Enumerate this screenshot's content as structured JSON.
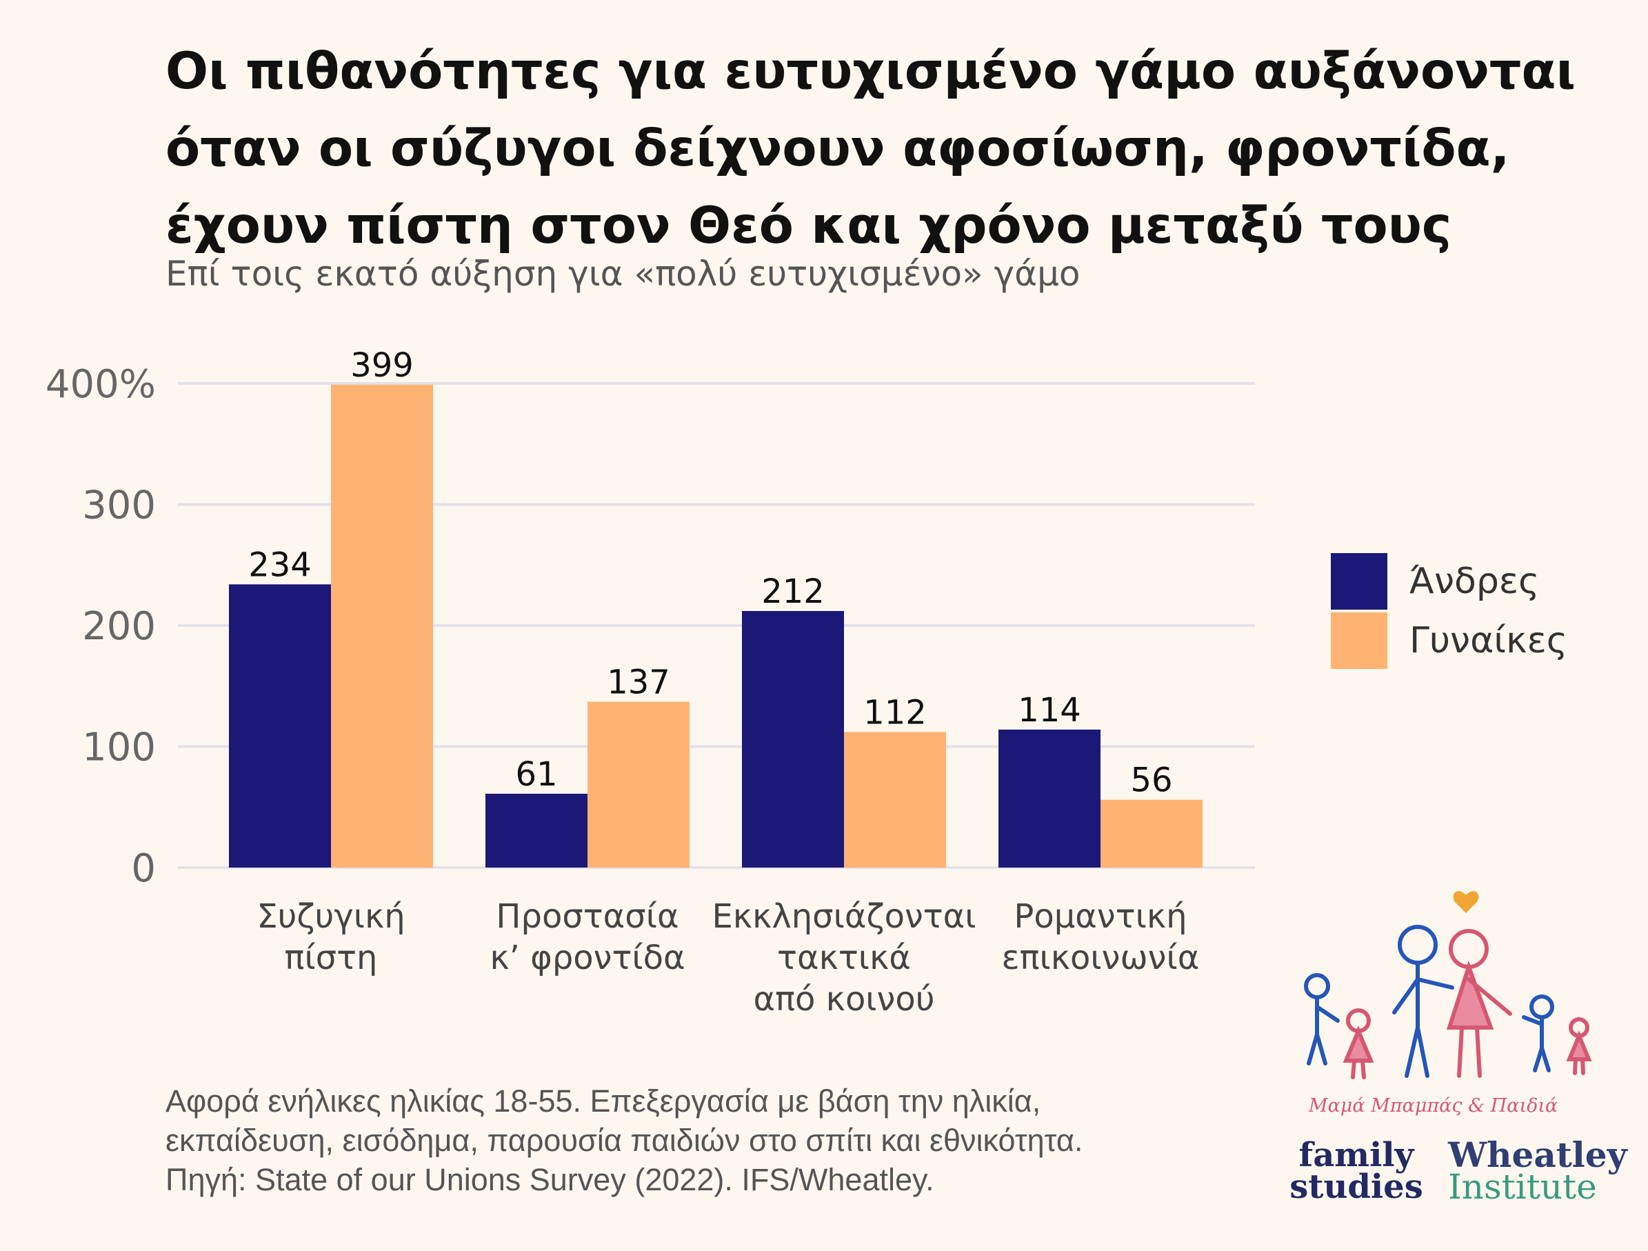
{
  "title_lines": [
    "Οι πιθανότητες για ευτυχισμένο γάμο αυξάνονται",
    "όταν οι σύζυγοι δείχνουν αφοσίωση, φροντίδα,",
    "έχουν πίστη στον Θεό και χρόνο μεταξύ τους"
  ],
  "subtitle": "Επί τοις εκατό αύξηση για «πολύ ευτυχισμένο» γάμο",
  "chart_data": {
    "type": "bar",
    "title": "Οι πιθανότητες για ευτυχισμένο γάμο αυξάνονται όταν οι σύζυγοι δείχνουν αφοσίωση, φροντίδα, έχουν πίστη στον Θεό και χρόνο μεταξύ τους",
    "subtitle": "Επί τοις εκατό αύξηση για «πολύ ευτυχισμένο» γάμο",
    "categories": [
      [
        "Συζυγική",
        "πίστη"
      ],
      [
        "Προστασία",
        "κ’ φροντίδα"
      ],
      [
        "Εκκλησιάζονται",
        "τακτικά",
        "από κοινού"
      ],
      [
        "Ρομαντική",
        "επικοινωνία"
      ]
    ],
    "series": [
      {
        "name": "Άνδρες",
        "color": "#1c1878",
        "values": [
          234,
          61,
          212,
          114
        ]
      },
      {
        "name": "Γυναίκες",
        "color": "#ffb373",
        "values": [
          399,
          137,
          112,
          56
        ]
      }
    ],
    "yticks": [
      0,
      100,
      200,
      300,
      400
    ],
    "ytick_labels": [
      "0",
      "100",
      "200",
      "300",
      "400%"
    ],
    "ylim": [
      0,
      400
    ],
    "xlabel": "",
    "ylabel": "",
    "grid": true,
    "legend_position": "right"
  },
  "legend": [
    {
      "label": "Άνδρες",
      "color": "#1c1878"
    },
    {
      "label": "Γυναίκες",
      "color": "#ffb373"
    }
  ],
  "footnote_lines": [
    "Αφορά ενήλικες ηλικίας 18-55. Επεξεργασία με βάση την ηλικία,",
    "εκπαίδευση, εισόδημα, παρουσία παιδιών στο σπίτι και εθνικότητα.",
    "Πηγή: State of our Unions Survey (2022). IFS/Wheatley."
  ],
  "logos": {
    "mascot_label": "Μαμά Μπαμπάς & Παιδιά",
    "family_studies": [
      "family",
      "studies"
    ],
    "wheatley": [
      "Wheatley",
      "Institute"
    ]
  }
}
